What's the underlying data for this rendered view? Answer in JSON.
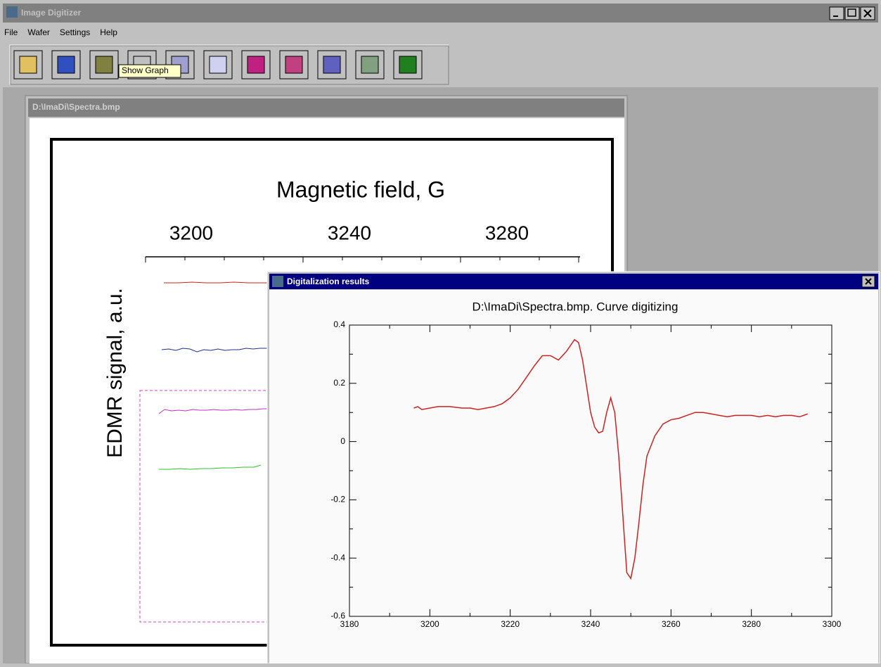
{
  "window": {
    "title": "Image Digitizer"
  },
  "menu": [
    "File",
    "Wafer",
    "Settings",
    "Help"
  ],
  "tooltip": "Show Graph",
  "image_window": {
    "title": "D:\\ImaDi\\Spectra.bmp",
    "image": {
      "x_label": "Magnetic field, G",
      "x_tick_labels": [
        "3200",
        "3240",
        "3280"
      ],
      "y_label": "EDMR signal, a.u."
    }
  },
  "results_window": {
    "title": "Digitalization results",
    "chart": {
      "type": "line",
      "title": "D:\\ImaDi\\Spectra.bmp.  Curve digitizing",
      "color": "#cc2222",
      "x": [
        3196,
        3197,
        3198,
        3200,
        3202,
        3205,
        3208,
        3210,
        3212,
        3214,
        3216,
        3218,
        3220,
        3222,
        3224,
        3226,
        3228,
        3230,
        3232,
        3234,
        3236,
        3237,
        3238,
        3239,
        3240,
        3241,
        3242,
        3243,
        3244,
        3245,
        3246,
        3247,
        3248,
        3249,
        3250,
        3251,
        3252,
        3253,
        3254,
        3256,
        3258,
        3260,
        3262,
        3264,
        3266,
        3268,
        3270,
        3272,
        3274,
        3276,
        3278,
        3280,
        3282,
        3284,
        3286,
        3288,
        3290,
        3292,
        3294
      ],
      "values": [
        0.115,
        0.12,
        0.11,
        0.115,
        0.12,
        0.12,
        0.115,
        0.115,
        0.11,
        0.115,
        0.12,
        0.13,
        0.15,
        0.18,
        0.22,
        0.26,
        0.295,
        0.295,
        0.28,
        0.31,
        0.35,
        0.34,
        0.28,
        0.19,
        0.1,
        0.05,
        0.03,
        0.035,
        0.1,
        0.15,
        0.1,
        -0.05,
        -0.25,
        -0.45,
        -0.47,
        -0.4,
        -0.28,
        -0.15,
        -0.05,
        0.02,
        0.06,
        0.075,
        0.08,
        0.09,
        0.1,
        0.1,
        0.095,
        0.09,
        0.085,
        0.09,
        0.09,
        0.09,
        0.085,
        0.09,
        0.085,
        0.09,
        0.09,
        0.085,
        0.095
      ],
      "xlim": [
        3180,
        3300
      ],
      "xticks": [
        3180,
        3200,
        3220,
        3240,
        3260,
        3280,
        3300
      ],
      "ylim": [
        -0.6,
        0.4
      ],
      "yticks": [
        -0.6,
        -0.4,
        -0.2,
        0,
        0.2,
        0.4
      ]
    }
  }
}
